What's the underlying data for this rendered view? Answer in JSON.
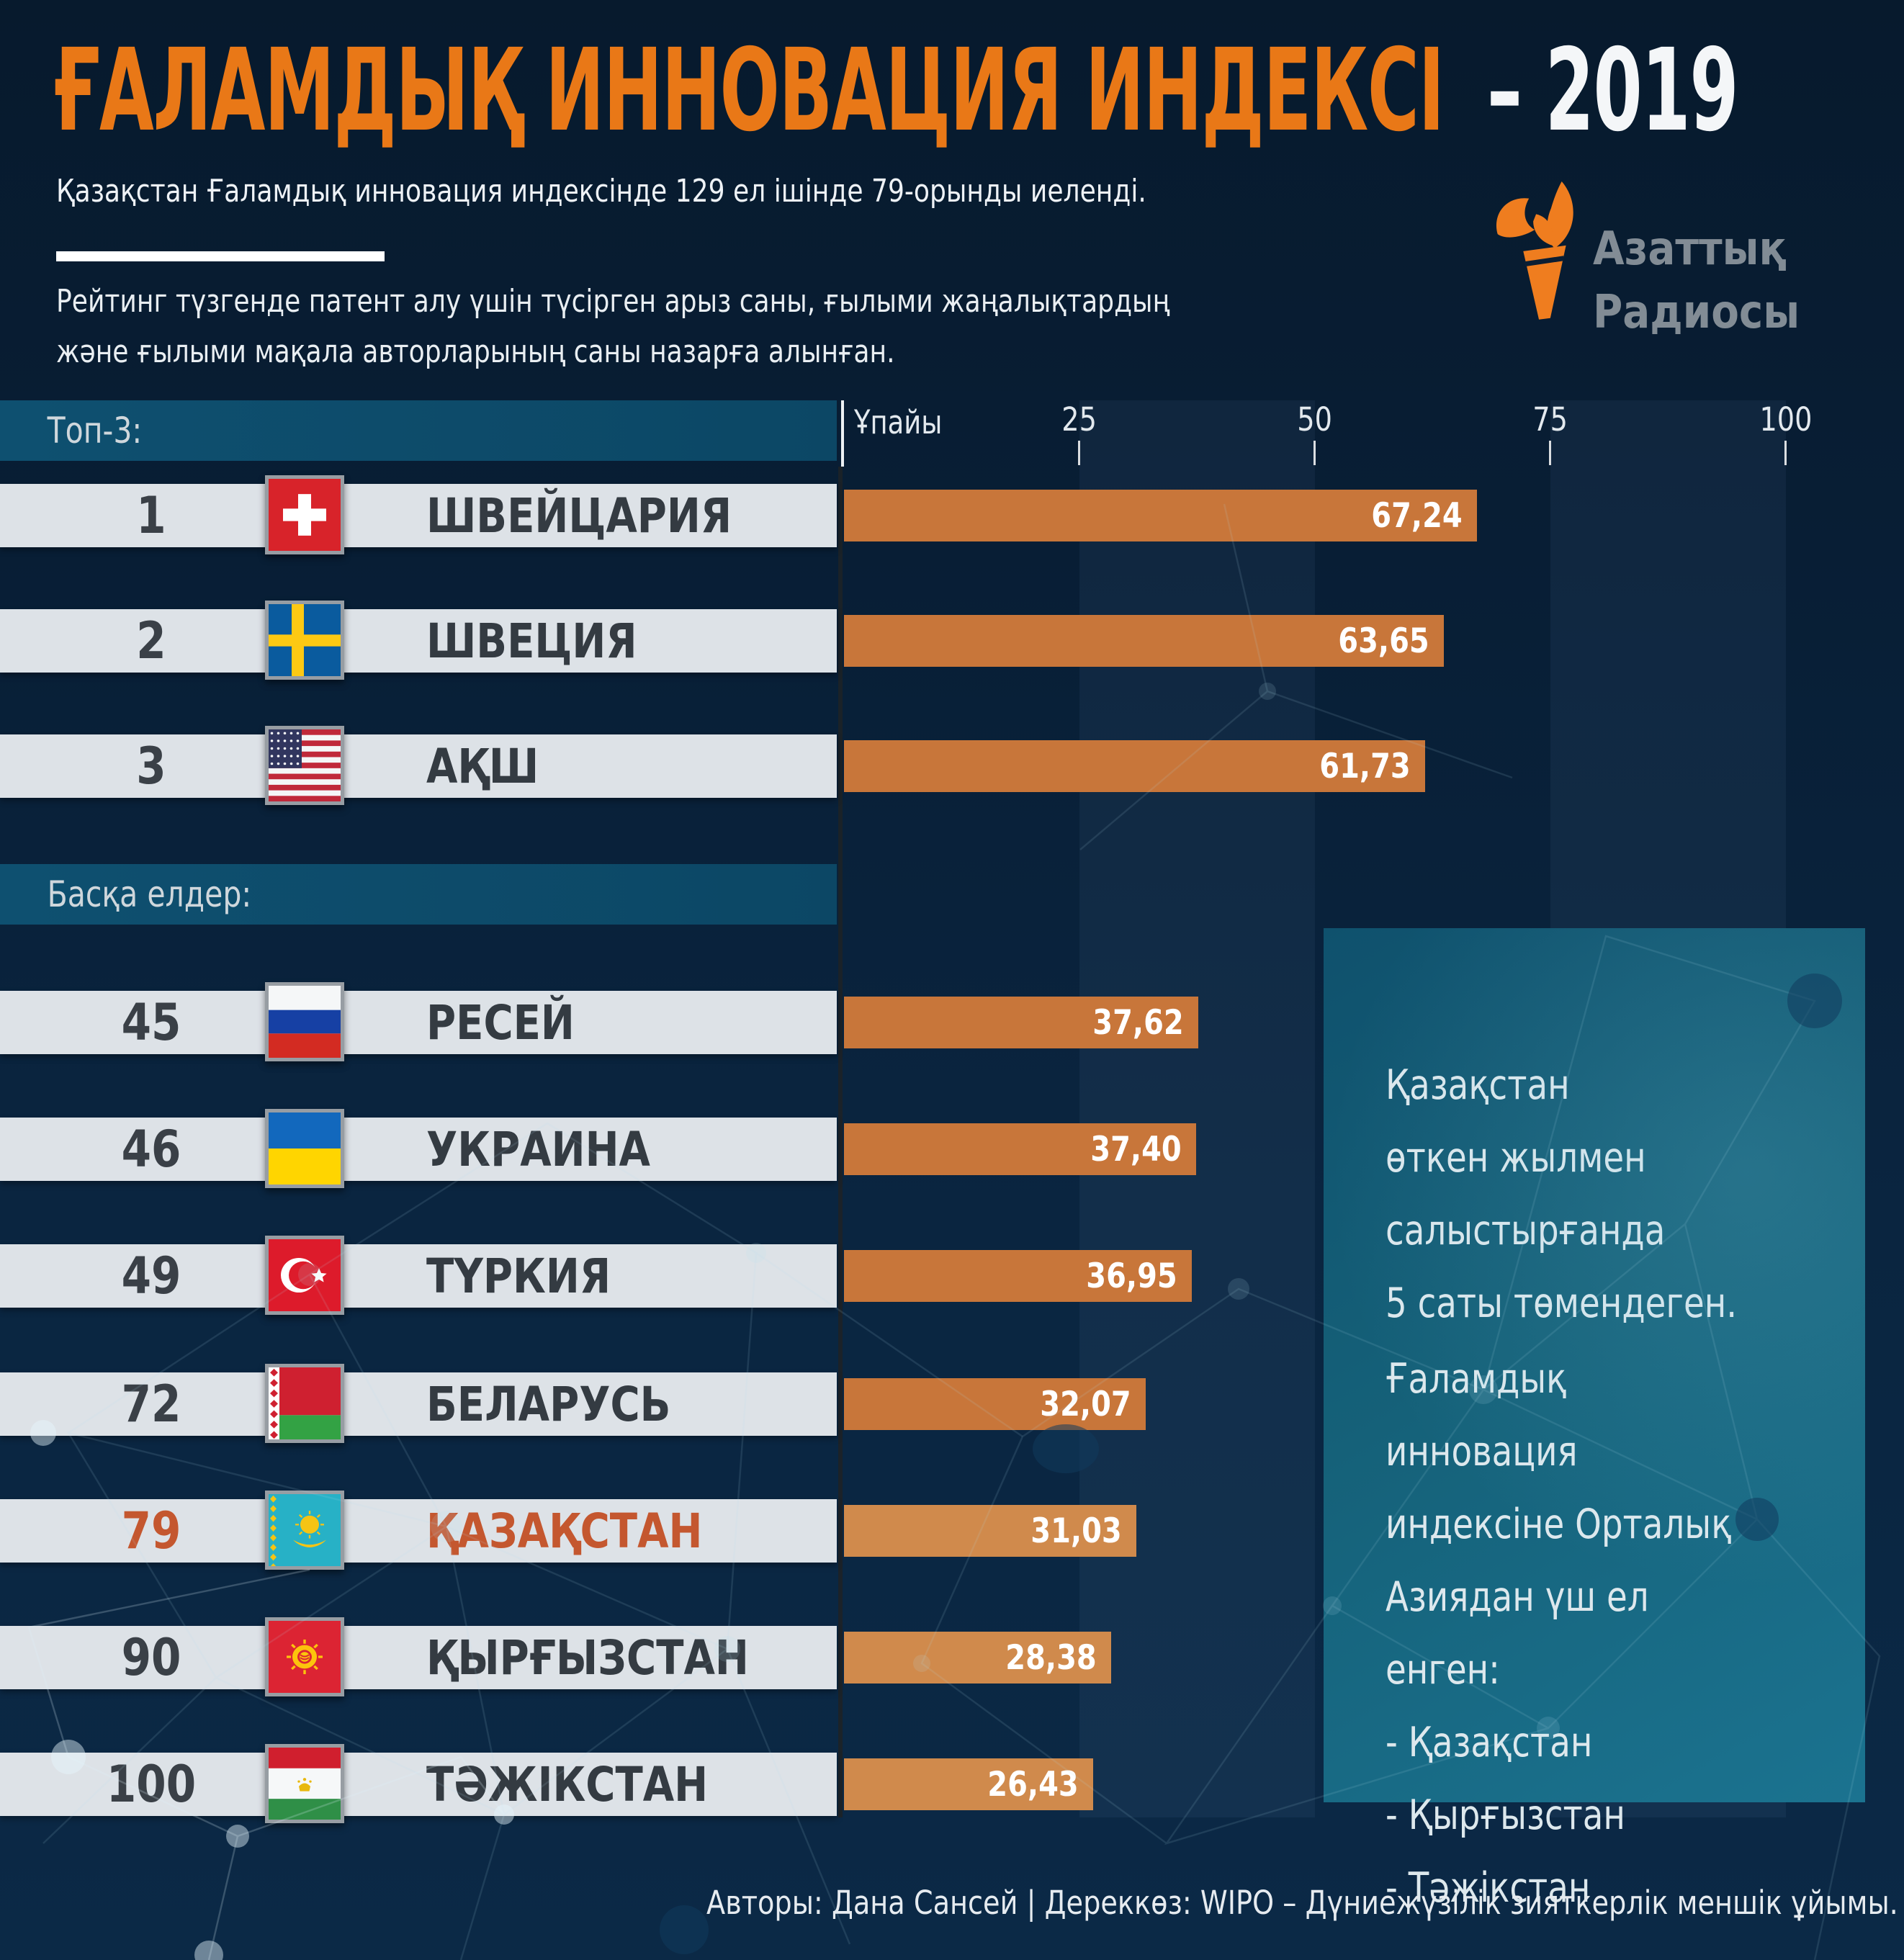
{
  "title": {
    "main": "ҒАЛАМДЫҚ ИННОВАЦИЯ ИНДЕКСІ",
    "year": "– 2019"
  },
  "subtitle": "Қазақстан Ғаламдық инновация индексінде 129 ел ішінде 79-орынды иеленді.",
  "description": "Рейтинг түзгенде патент алу үшін түсірген арыз саны, ғылыми жаңалықтардың\nжәне ғылыми мақала авторларының саны назарға алынған.",
  "logo": {
    "text": "Азаттық\nРадиосы"
  },
  "sections": {
    "top3": "Топ-3:",
    "others": "Басқа елдер:"
  },
  "axis": {
    "label": "Ұпайы",
    "ticks": [
      "25",
      "50",
      "75",
      "100"
    ],
    "max": 100
  },
  "rows": [
    {
      "rank": "1",
      "country": "ШВЕЙЦАРИЯ",
      "flag": "ch",
      "value": 67.24,
      "value_label": "67,24",
      "bar_color": "#c8763a",
      "highlight": false
    },
    {
      "rank": "2",
      "country": "ШВЕЦИЯ",
      "flag": "se",
      "value": 63.65,
      "value_label": "63,65",
      "bar_color": "#c8763a",
      "highlight": false
    },
    {
      "rank": "3",
      "country": "АҚШ",
      "flag": "us",
      "value": 61.73,
      "value_label": "61,73",
      "bar_color": "#c8763a",
      "highlight": false
    },
    {
      "rank": "45",
      "country": "РЕСЕЙ",
      "flag": "ru",
      "value": 37.62,
      "value_label": "37,62",
      "bar_color": "#c8763a",
      "highlight": false
    },
    {
      "rank": "46",
      "country": "УКРАИНА",
      "flag": "ua",
      "value": 37.4,
      "value_label": "37,40",
      "bar_color": "#c8763a",
      "highlight": false
    },
    {
      "rank": "49",
      "country": "ТҮРКИЯ",
      "flag": "tr",
      "value": 36.95,
      "value_label": "36,95",
      "bar_color": "#c8763a",
      "highlight": false
    },
    {
      "rank": "72",
      "country": "БЕЛАРУСЬ",
      "flag": "by",
      "value": 32.07,
      "value_label": "32,07",
      "bar_color": "#c8763a",
      "highlight": false
    },
    {
      "rank": "79",
      "country": "ҚАЗАҚСТАН",
      "flag": "kz",
      "value": 31.03,
      "value_label": "31,03",
      "bar_color": "#d08a4c",
      "highlight": true
    },
    {
      "rank": "90",
      "country": "ҚЫРҒЫЗСТАН",
      "flag": "kg",
      "value": 28.38,
      "value_label": "28,38",
      "bar_color": "#d08a4c",
      "highlight": false
    },
    {
      "rank": "100",
      "country": "ТӘЖІКСТАН",
      "flag": "tj",
      "value": 26.43,
      "value_label": "26,43",
      "bar_color": "#d08a4c",
      "highlight": false
    }
  ],
  "side_panel": {
    "block1": "Қазақстан\nөткен жылмен\nсалыстырғанда\n5 саты төмендеген.",
    "block2": "Ғаламдық инновация\nиндексіне Орталық\nАзиядан үш ел енген:\n- Қазақстан\n- Қырғызстан\n- Тәжікстан"
  },
  "footer": "Авторы: Дана Сансей | Дереккөз: WIPO – Дүниежүзілік зияткерлік меншік ұйымы.",
  "colors": {
    "accent_orange": "#e97817",
    "bar_orange": "#c8763a",
    "bar_orange_light": "#d08a4c",
    "highlight_text": "#c4572f",
    "section_bar": "#0d4c6d",
    "row_bg": "#dde2e7",
    "panel_teal": "#15607c",
    "background": "#081e35"
  },
  "chart_data": {
    "type": "bar",
    "orientation": "horizontal",
    "title": "Ғаламдық инновация индексі – 2019",
    "categories": [
      "ШВЕЙЦАРИЯ",
      "ШВЕЦИЯ",
      "АҚШ",
      "РЕСЕЙ",
      "УКРАИНА",
      "ТҮРКИЯ",
      "БЕЛАРУСЬ",
      "ҚАЗАҚСТАН",
      "ҚЫРҒЫЗСТАН",
      "ТӘЖІКСТАН"
    ],
    "ranks": [
      1,
      2,
      3,
      45,
      46,
      49,
      72,
      79,
      90,
      100
    ],
    "values": [
      67.24,
      63.65,
      61.73,
      37.62,
      37.4,
      36.95,
      32.07,
      31.03,
      28.38,
      26.43
    ],
    "xlabel": "Ұпайы",
    "ylabel": "",
    "xlim": [
      0,
      100
    ],
    "xticks": [
      25,
      50,
      75,
      100
    ],
    "grid": false,
    "legend": false
  }
}
